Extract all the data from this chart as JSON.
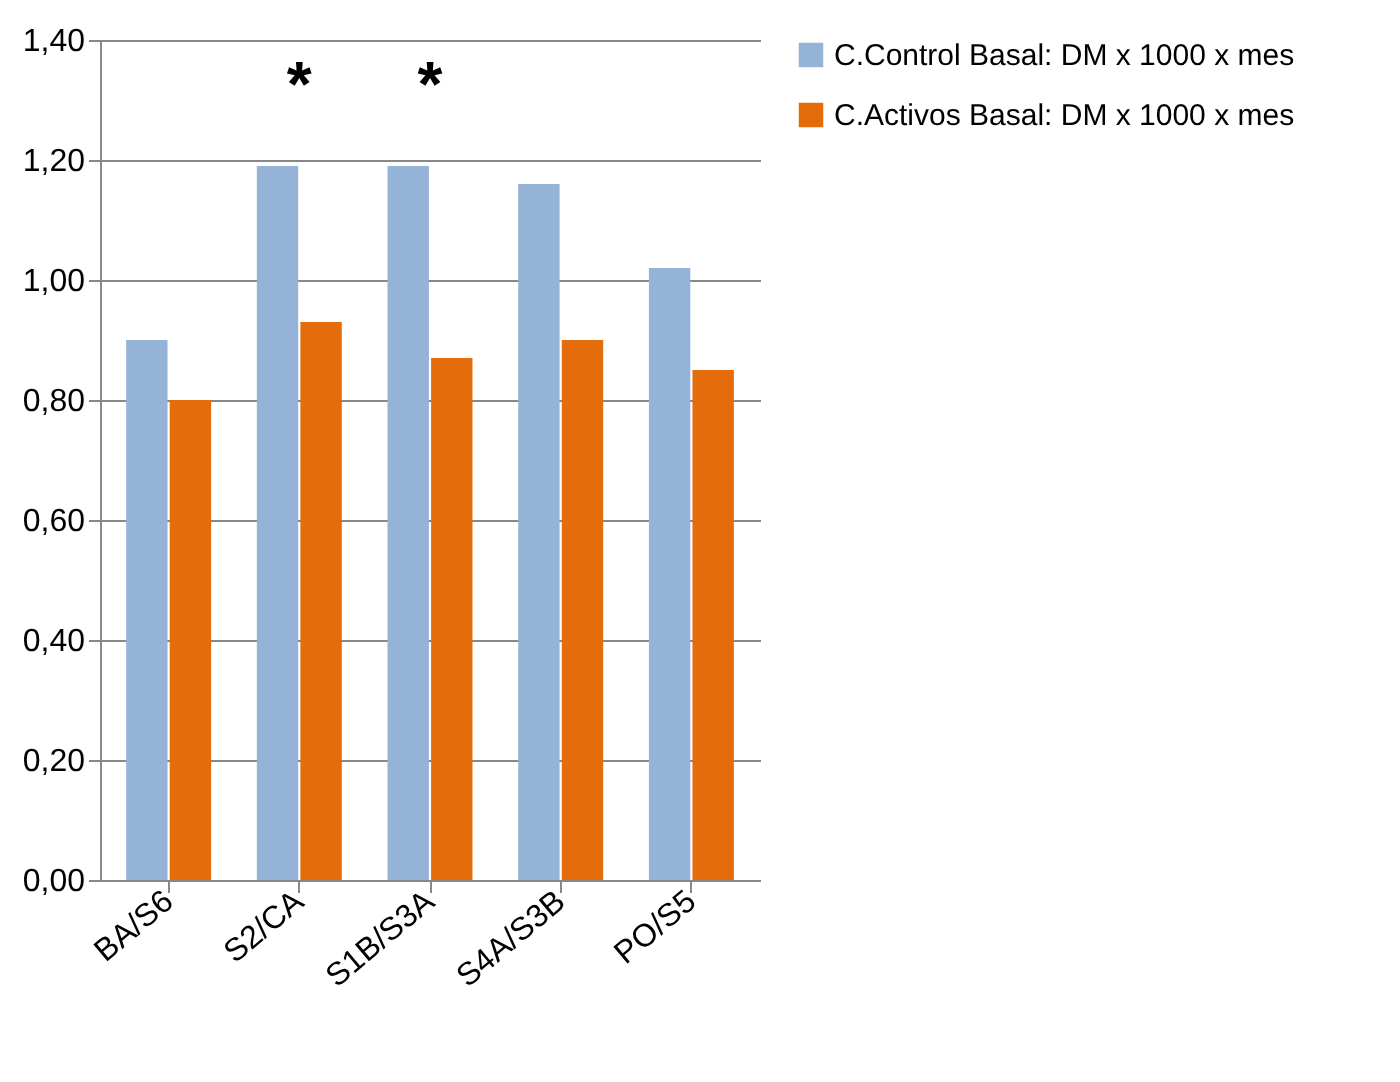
{
  "chart_data": {
    "type": "bar",
    "categories": [
      "BA/S6",
      "S2/CA",
      "S1B/S3A",
      "S4A/S3B",
      "PO/S5"
    ],
    "series": [
      {
        "name": "C.Control Basal: DM x 1000 x mes",
        "color": "#95b3d7",
        "values": [
          0.9,
          1.19,
          1.19,
          1.16,
          1.02
        ]
      },
      {
        "name": "C.Activos Basal: DM x 1000 x mes",
        "color": "#e46c0a",
        "values": [
          0.8,
          0.93,
          0.87,
          0.9,
          0.85
        ]
      }
    ],
    "ylim": [
      0,
      1.4
    ],
    "yticks": [
      {
        "value": 0,
        "label": "0,00"
      },
      {
        "value": 0.2,
        "label": "0,20"
      },
      {
        "value": 0.4,
        "label": "0,40"
      },
      {
        "value": 0.6,
        "label": "0,60"
      },
      {
        "value": 0.8,
        "label": "0,80"
      },
      {
        "value": 1.0,
        "label": "1,00"
      },
      {
        "value": 1.2,
        "label": "1,20"
      },
      {
        "value": 1.4,
        "label": "1,40"
      }
    ],
    "annotations": [
      "*",
      "*"
    ],
    "grid": "y",
    "legend": "right"
  }
}
